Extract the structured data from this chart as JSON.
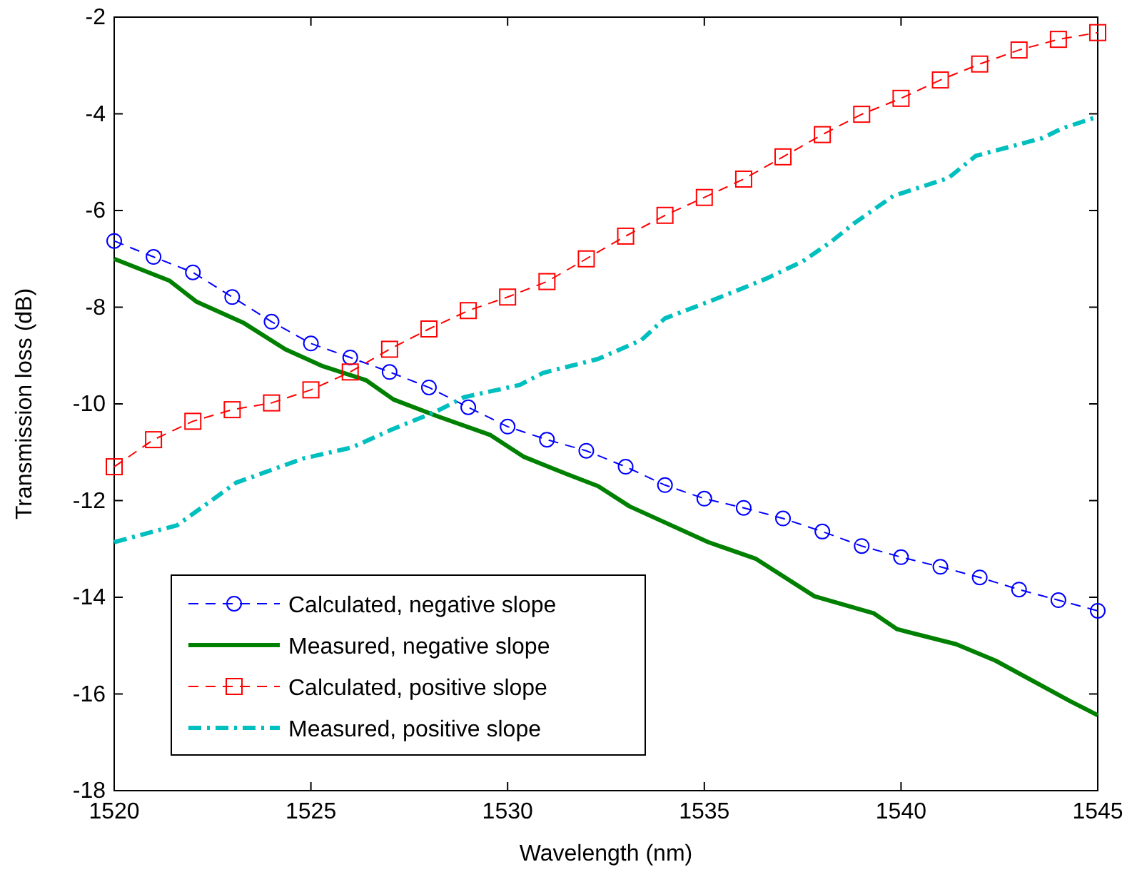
{
  "chart_data": {
    "type": "line",
    "xlabel": "Wavelength (nm)",
    "ylabel": "Transmission loss (dB)",
    "xlim": [
      1520,
      1545
    ],
    "xticks": [
      1520,
      1525,
      1530,
      1535,
      1540,
      1545
    ],
    "ylim": [
      -18,
      -2
    ],
    "yticks": [
      -18,
      -16,
      -14,
      -12,
      -10,
      -8,
      -6,
      -4,
      -2
    ],
    "grid": false,
    "legend": "bottom left",
    "series": [
      {
        "name": "Calculated, negative slope",
        "color": "#0000ff",
        "marker": "circle",
        "line_style": "dashed",
        "x": [
          1520,
          1521,
          1522,
          1523,
          1524,
          1525,
          1526,
          1527,
          1528,
          1529,
          1530,
          1531,
          1532,
          1533,
          1534,
          1535,
          1536,
          1537,
          1538,
          1539,
          1540,
          1541,
          1542,
          1543,
          1544,
          1545
        ],
        "values": [
          -6.63,
          -6.96,
          -7.28,
          -7.79,
          -8.3,
          -8.75,
          -9.04,
          -9.34,
          -9.66,
          -10.07,
          -10.47,
          -10.74,
          -10.97,
          -11.3,
          -11.68,
          -11.96,
          -12.15,
          -12.37,
          -12.64,
          -12.94,
          -13.17,
          -13.37,
          -13.59,
          -13.84,
          -14.06,
          -14.28
        ]
      },
      {
        "name": "Measured, negative slope",
        "color": "#008000",
        "marker": "none",
        "line_style": "solid",
        "x": [
          1520,
          1521.4,
          1522.1,
          1523.3,
          1524.35,
          1525.3,
          1526.4,
          1527.1,
          1528.2,
          1529.55,
          1530.4,
          1531.5,
          1532.3,
          1533.1,
          1535.1,
          1536.3,
          1537.8,
          1539.3,
          1539.9,
          1541.4,
          1542.4,
          1544.3,
          1545
        ],
        "values": [
          -7.0,
          -7.45,
          -7.89,
          -8.33,
          -8.87,
          -9.22,
          -9.51,
          -9.91,
          -10.25,
          -10.64,
          -11.09,
          -11.45,
          -11.7,
          -12.12,
          -12.86,
          -13.2,
          -13.98,
          -14.33,
          -14.66,
          -14.97,
          -15.31,
          -16.15,
          -16.44
        ]
      },
      {
        "name": "Calculated, positive slope",
        "color": "#ff0000",
        "marker": "square",
        "line_style": "dashed",
        "x": [
          1520,
          1521,
          1522,
          1523,
          1524,
          1525,
          1526,
          1527,
          1528,
          1529,
          1530,
          1531,
          1532,
          1533,
          1534,
          1535,
          1536,
          1537,
          1538,
          1539,
          1540,
          1541,
          1542,
          1543,
          1544,
          1545
        ],
        "values": [
          -11.3,
          -10.74,
          -10.36,
          -10.12,
          -9.98,
          -9.71,
          -9.34,
          -8.87,
          -8.45,
          -8.07,
          -7.79,
          -7.47,
          -7.0,
          -6.53,
          -6.1,
          -5.73,
          -5.35,
          -4.89,
          -4.43,
          -4.01,
          -3.68,
          -3.3,
          -2.97,
          -2.68,
          -2.46,
          -2.32
        ]
      },
      {
        "name": "Measured, positive slope",
        "color": "#00bfbf",
        "marker": "none",
        "line_style": "dashdot",
        "x": [
          1520,
          1521.6,
          1523.1,
          1524.8,
          1526.05,
          1527.0,
          1528.2,
          1528.9,
          1530.3,
          1530.9,
          1532.3,
          1533.4,
          1534.0,
          1535.1,
          1536.0,
          1536.6,
          1537.5,
          1538.2,
          1538.8,
          1539.8,
          1541.2,
          1541.9,
          1543.6,
          1544.1,
          1545
        ],
        "values": [
          -12.86,
          -12.51,
          -11.63,
          -11.13,
          -10.9,
          -10.55,
          -10.15,
          -9.86,
          -9.61,
          -9.36,
          -9.07,
          -8.68,
          -8.23,
          -7.89,
          -7.6,
          -7.4,
          -7.05,
          -6.66,
          -6.27,
          -5.7,
          -5.33,
          -4.87,
          -4.5,
          -4.3,
          -4.06
        ]
      }
    ]
  }
}
